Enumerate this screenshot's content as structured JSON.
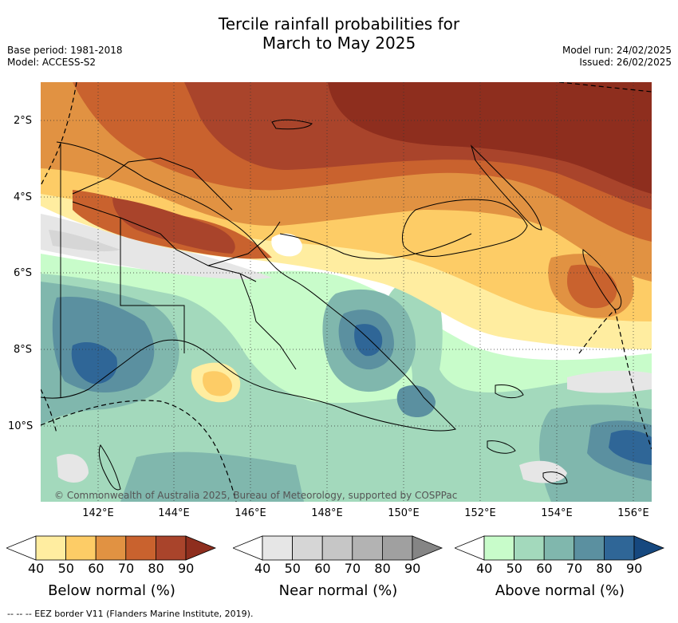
{
  "header": {
    "title_line1": "Tercile rainfall probabilities for",
    "title_line2": "March to May 2025",
    "base_period": "Base period: 1981-2018",
    "model": "Model: ACCESS-S2",
    "model_run": "Model run: 24/02/2025",
    "issued": "Issued: 26/02/2025"
  },
  "map": {
    "lat_ticks": [
      "2°S",
      "4°S",
      "6°S",
      "8°S",
      "10°S"
    ],
    "lon_ticks": [
      "142°E",
      "144°E",
      "146°E",
      "148°E",
      "150°E",
      "152°E",
      "154°E",
      "156°E"
    ],
    "credit": "© Commonwealth of Australia 2025, Bureau of Meteorology, supported by COSPPac"
  },
  "legend": {
    "below": {
      "title": "Below normal (%)",
      "levels": [
        "40",
        "50",
        "60",
        "70",
        "80",
        "90"
      ],
      "colors": [
        "#ffffff",
        "#ffeda0",
        "#fdcc66",
        "#e19242",
        "#c9622e",
        "#a9442b",
        "#8e2e1e"
      ]
    },
    "near": {
      "title": "Near normal (%)",
      "levels": [
        "40",
        "50",
        "60",
        "70",
        "80",
        "90"
      ],
      "colors": [
        "#ffffff",
        "#e6e6e6",
        "#d6d6d6",
        "#c6c6c6",
        "#b3b3b3",
        "#a0a0a0",
        "#858585"
      ]
    },
    "above": {
      "title": "Above normal (%)",
      "levels": [
        "40",
        "50",
        "60",
        "70",
        "80",
        "90"
      ],
      "colors": [
        "#ffffff",
        "#c8fcca",
        "#a3d9bc",
        "#80b7ad",
        "#5b90a0",
        "#2f6697",
        "#16487f"
      ]
    }
  },
  "footer": {
    "eez_note": "--  --  -- EEZ border V11 (Flanders Marine Institute, 2019)."
  }
}
